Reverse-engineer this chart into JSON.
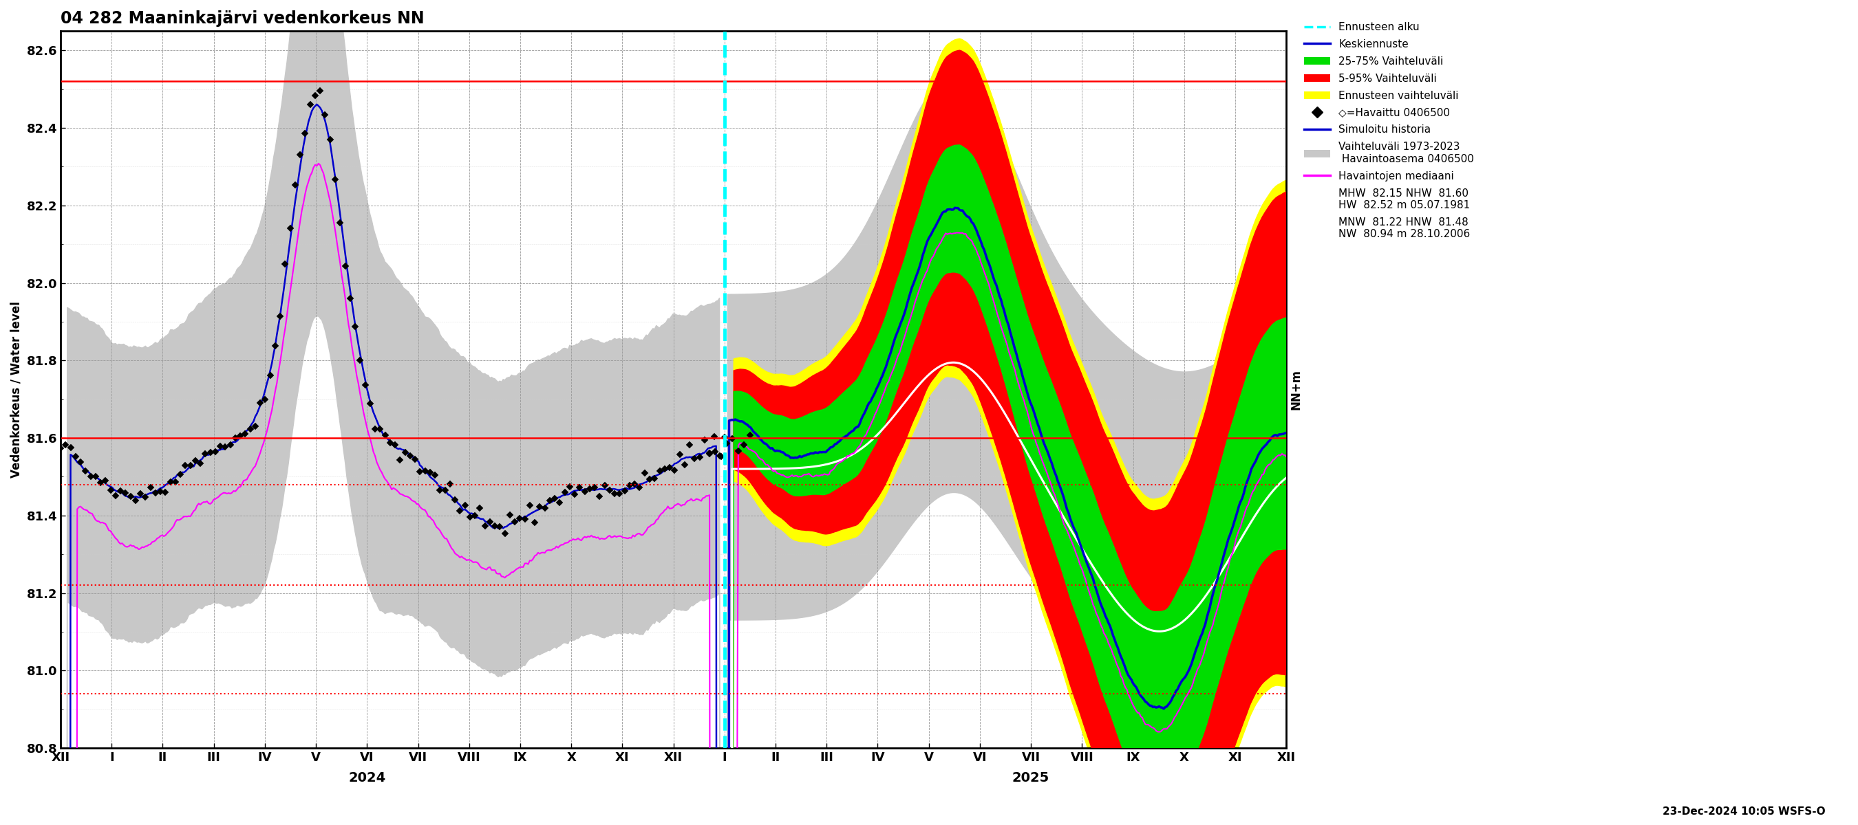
{
  "title": "04 282 Maaninkajärvi vedenkorkeus NN",
  "ylabel_left": "Vedenkorkeus / Water level",
  "ylabel_right": "NN+m",
  "xlabel_year1": "2024",
  "xlabel_year2": "2025",
  "timestamp": "23-Dec-2024 10:05 WSFS-O",
  "ylim": [
    80.8,
    82.65
  ],
  "yticks": [
    80.8,
    81.0,
    81.2,
    81.4,
    81.6,
    81.8,
    82.0,
    82.2,
    82.4,
    82.6
  ],
  "hlines_solid_red": [
    82.52,
    81.6
  ],
  "hlines_dashed_red": [
    81.48,
    81.22,
    80.94
  ],
  "colors": {
    "background": "#ffffff",
    "hist_range": "#c8c8c8",
    "forecast_outer": "#ffff00",
    "forecast_5_95": "#ff0000",
    "forecast_25_75": "#00dd00",
    "median_forecast": "#0000cc",
    "observed": "#000000",
    "simulated": "#0000cc",
    "hist_median": "#ff00ff",
    "white_line": "#ffffff",
    "forecast_start_line": "#00ffff",
    "hline_solid": "#ff0000",
    "hline_dashed": "#ff0000"
  },
  "month_labels": [
    "XII",
    "I",
    "II",
    "III",
    "IV",
    "V",
    "VI",
    "VII",
    "VIII",
    "IX",
    "X",
    "XI",
    "XII",
    "I",
    "II",
    "III",
    "IV",
    "V",
    "VI",
    "VII",
    "VIII",
    "IX",
    "X",
    "XI",
    "XII"
  ],
  "legend_labels": [
    "Ennusteen alku",
    "Keskiennuste",
    "25-75% Vaihteluväli",
    "5-95% Vaihteluväli",
    "Ennusteen vaihteluväli",
    "◇=Havaittu 0406500",
    "Simuloitu historia",
    "Vaihteluväli 1973-2023\n Havaintoasema 0406500",
    "Havaintojen mediaani",
    "MHW  82.15 NHW  81.60\nHW  82.52 m 05.07.1981",
    "MNW  81.22 HNW  81.48\nNW  80.94 m 28.10.2006"
  ]
}
